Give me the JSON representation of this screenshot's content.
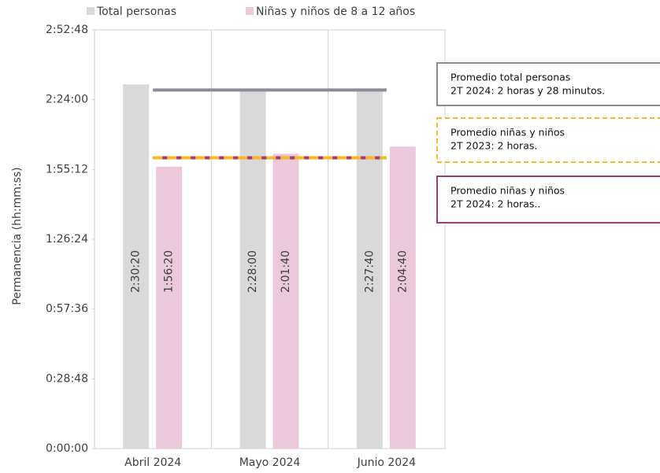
{
  "chart_data": {
    "type": "bar",
    "y_axis_label": "Permanencia (hh:mm:ss)",
    "categories": [
      "Abril 2024",
      "Mayo 2024",
      "Junio 2024"
    ],
    "series": [
      {
        "name": "Total personas",
        "color": "#d9d9d9",
        "values": [
          9020,
          8880,
          8860
        ],
        "value_labels": [
          "2:30:20",
          "2:28:00",
          "2:27:40"
        ]
      },
      {
        "name": "Niñas y niños de 8 a 12 años",
        "color": "#ebc9da",
        "values": [
          6980,
          7300,
          7480
        ],
        "value_labels": [
          "1:56:20",
          "2:01:40",
          "2:04:40"
        ]
      }
    ],
    "ylim": [
      0,
      10368
    ],
    "yticks": [
      {
        "value": 0,
        "label": "0:00:00"
      },
      {
        "value": 1728,
        "label": "0:28:48"
      },
      {
        "value": 3456,
        "label": "0:57:36"
      },
      {
        "value": 5184,
        "label": "1:26:24"
      },
      {
        "value": 6912,
        "label": "1:55:12"
      },
      {
        "value": 8640,
        "label": "2:24:00"
      },
      {
        "value": 10368,
        "label": "2:52:48"
      }
    ],
    "reference_lines": [
      {
        "value": 8880,
        "color": "#8c8a96",
        "dashed": false,
        "text": [
          "Promedio total personas",
          "2T 2024: 2 horas y 28 minutos."
        ]
      },
      {
        "value": 7200,
        "color": "#f4b82a",
        "dashed": true,
        "text": [
          "Promedio niñas y niños",
          "2T 2023: 2 horas."
        ]
      },
      {
        "value": 7200,
        "color": "#9c3f78",
        "dashed": false,
        "text": [
          "Promedio niñas y niños",
          "2T 2024: 2 horas.."
        ]
      }
    ]
  }
}
